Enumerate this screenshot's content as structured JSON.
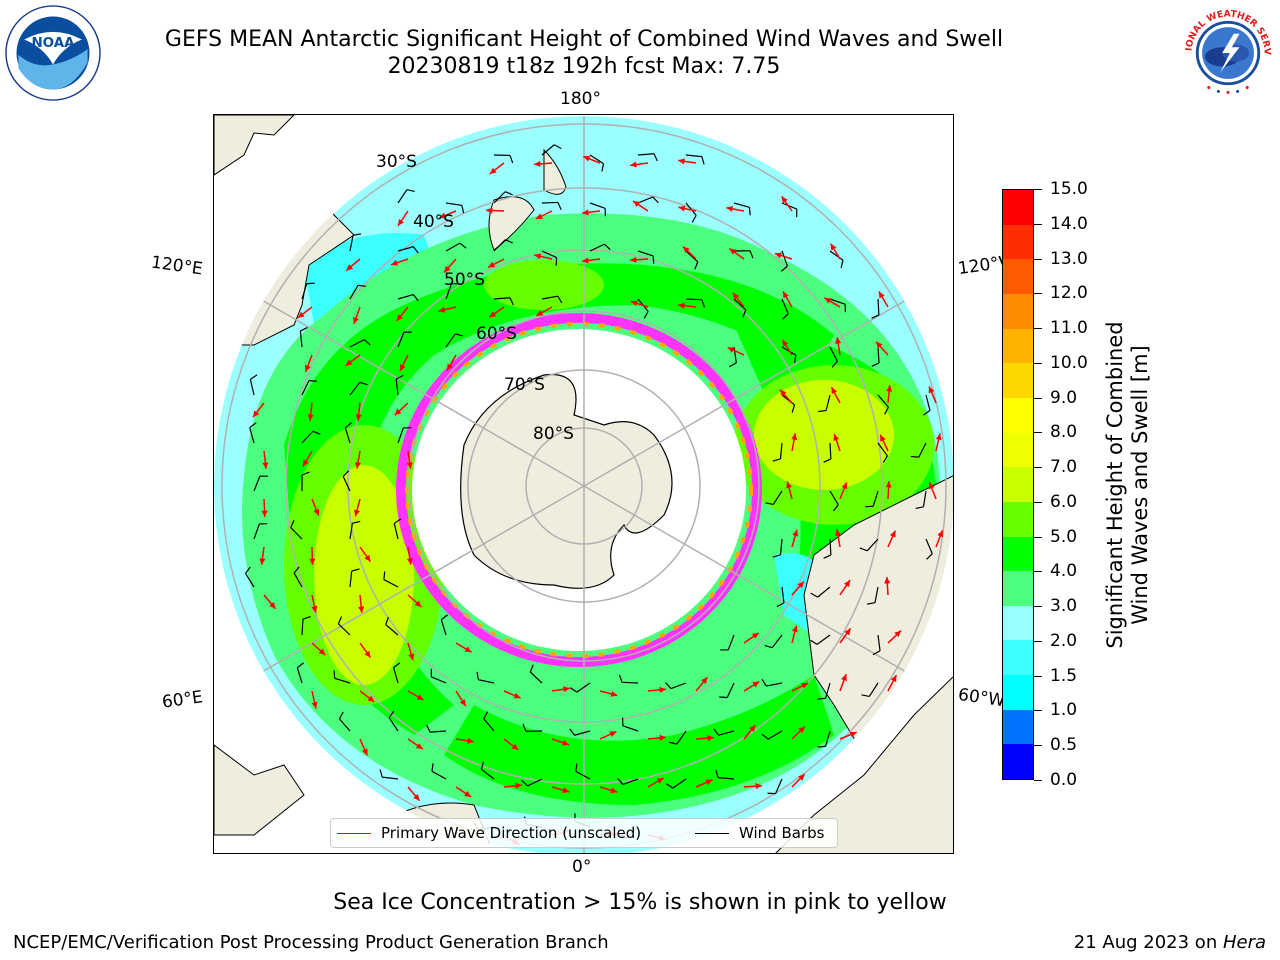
{
  "title": {
    "line1": "GEFS MEAN Antarctic Significant Height of Combined Wind Waves and Swell",
    "line2": "20230819 t18z 192h fcst   Max: 7.75"
  },
  "logos": {
    "left": {
      "name": "noaa-logo",
      "text": "NOAA",
      "ring_text": "NATIONAL OCEANIC AND ATMOSPHERIC ADMINISTRATION · U.S. DEPARTMENT OF COMMERCE"
    },
    "right": {
      "name": "nws-logo",
      "ring_text": "NATIONAL WEATHER SERVICE"
    }
  },
  "map": {
    "projection": "south-polar-stereographic",
    "longitude_labels": {
      "top": "180°",
      "bottom": "0°",
      "upper_left": "120°E",
      "lower_left": "60°E",
      "upper_right": "120°W",
      "lower_right": "60°W"
    },
    "latitude_labels": [
      "30°S",
      "40°S",
      "50°S",
      "60°S",
      "70°S",
      "80°S"
    ],
    "land_color": "#efedde",
    "ice_edge_colors": [
      "#ff33ff",
      "#ffa500",
      "#ffff66"
    ]
  },
  "legend": {
    "entries": [
      {
        "label": "Primary Wave Direction (unscaled)",
        "color": "#ff0000"
      },
      {
        "label": "Wind Barbs",
        "color": "#000000"
      }
    ]
  },
  "colorbar": {
    "title_line1": "Significant Height of Combined",
    "title_line2": "Wind Waves and Swell [m]",
    "ticks": [
      "0.0",
      "0.5",
      "1.0",
      "1.5",
      "2.0",
      "3.0",
      "4.0",
      "5.0",
      "6.0",
      "7.0",
      "8.0",
      "9.0",
      "10.0",
      "11.0",
      "12.0",
      "13.0",
      "14.0",
      "15.0"
    ],
    "colors": [
      "#0000ff",
      "#0073ff",
      "#00ffff",
      "#3cffff",
      "#99ffff",
      "#4dff7e",
      "#00ff00",
      "#66ff00",
      "#c8ff00",
      "#eeff00",
      "#ffff00",
      "#ffd700",
      "#ffb300",
      "#ff8c00",
      "#ff5a00",
      "#ff2d00",
      "#ff0000"
    ]
  },
  "notes": {
    "sea_ice": "Sea Ice Concentration > 15% is shown in pink to yellow"
  },
  "footer": {
    "left": "NCEP/EMC/Verification Post Processing Product Generation Branch",
    "right_date": "21 Aug 2023 on ",
    "right_host": "Hera"
  }
}
